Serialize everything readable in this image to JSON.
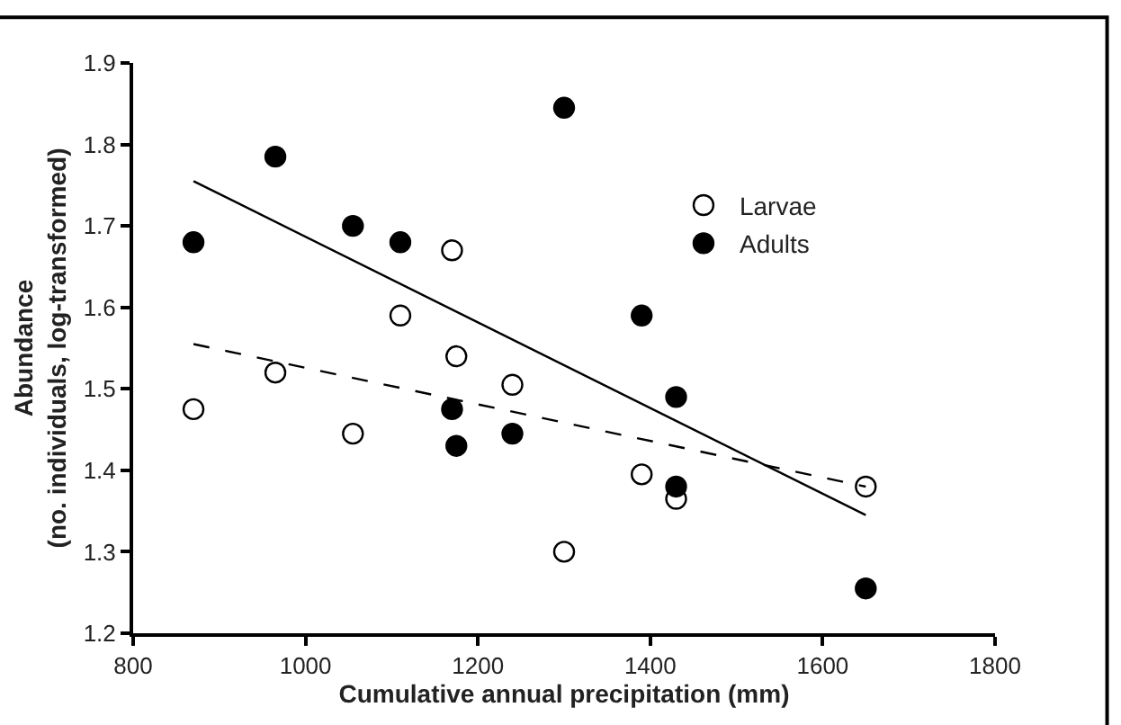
{
  "chart_data": {
    "type": "scatter",
    "xlabel": "Cumulative annual precipitation (mm)",
    "ylabel": "Abundance\n(no. individuals, log-transformed)",
    "xlim": [
      800,
      1800
    ],
    "xticks": [
      800,
      1000,
      1200,
      1400,
      1600,
      1800
    ],
    "ylim": [
      1.2,
      1.9
    ],
    "yticks": [
      {
        "value": 1.2,
        "label": "1.2"
      },
      {
        "value": 1.3,
        "label": "1.3"
      },
      {
        "value": 1.4,
        "label": "1.4"
      },
      {
        "value": 1.5,
        "label": "1.5"
      },
      {
        "value": 1.6,
        "label": "1.6"
      },
      {
        "value": 1.7,
        "label": "1.7"
      },
      {
        "value": 1.8,
        "label": "1.8"
      },
      {
        "value": 1.9,
        "label": "1.9"
      }
    ],
    "legend": "top right",
    "series": [
      {
        "name": "Larvae",
        "color": "#ffffff",
        "marker": "circle",
        "x": [
          870,
          965,
          1055,
          1110,
          1170,
          1175,
          1240,
          1300,
          1390,
          1430,
          1650
        ],
        "values": [
          1.475,
          1.52,
          1.445,
          1.59,
          1.67,
          1.54,
          1.505,
          1.3,
          1.395,
          1.365,
          1.38
        ]
      },
      {
        "name": "Adults",
        "color": "#000000",
        "marker": "circle",
        "x": [
          870,
          965,
          1055,
          1110,
          1170,
          1175,
          1240,
          1300,
          1390,
          1430,
          1430,
          1650
        ],
        "values": [
          1.68,
          1.785,
          1.7,
          1.68,
          1.475,
          1.43,
          1.445,
          1.845,
          1.59,
          1.49,
          1.38,
          1.255
        ]
      },
      {
        "type": "line",
        "color": "#000000",
        "line_style": "dashed",
        "marker": "none",
        "x": [
          870,
          1650
        ],
        "values": [
          1.555,
          1.38
        ]
      },
      {
        "type": "line",
        "color": "#000000",
        "line_style": "solid",
        "marker": "none",
        "x": [
          870,
          1650
        ],
        "values": [
          1.755,
          1.345
        ]
      }
    ]
  }
}
